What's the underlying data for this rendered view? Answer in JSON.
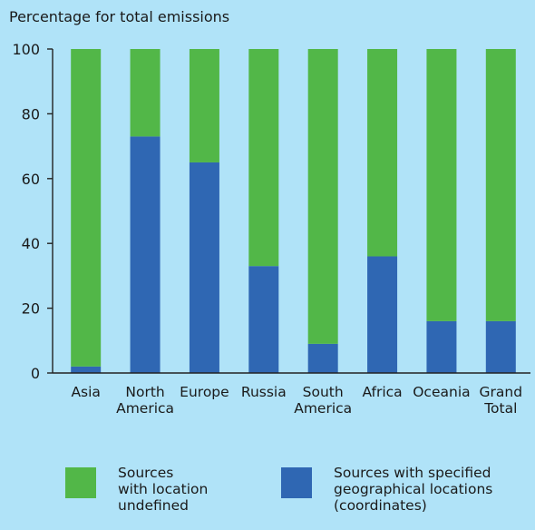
{
  "chart_data": {
    "type": "bar",
    "stacked": true,
    "title": "Percentage for total emissions",
    "categories": [
      "Asia",
      "North\nAmerica",
      "Europe",
      "Russia",
      "South\nAmerica",
      "Africa",
      "Oceania",
      "Grand\nTotal"
    ],
    "series": [
      {
        "name": "Sources with specified geographical locations (coordinates)",
        "color": "#2f67b3",
        "values": [
          2,
          73,
          65,
          33,
          9,
          36,
          16,
          16
        ]
      },
      {
        "name": "Sources with location undefined",
        "color": "#52b748",
        "values": [
          98,
          27,
          35,
          67,
          91,
          64,
          84,
          84
        ]
      }
    ],
    "ylim": [
      0,
      100
    ],
    "yticks": [
      0,
      20,
      40,
      60,
      80,
      100
    ],
    "grid": false,
    "legend_position": "bottom"
  },
  "legend": {
    "green_label": "Sources\nwith location\nundefined",
    "blue_label": "Sources with specified\ngeographical locations\n(coordinates)"
  }
}
